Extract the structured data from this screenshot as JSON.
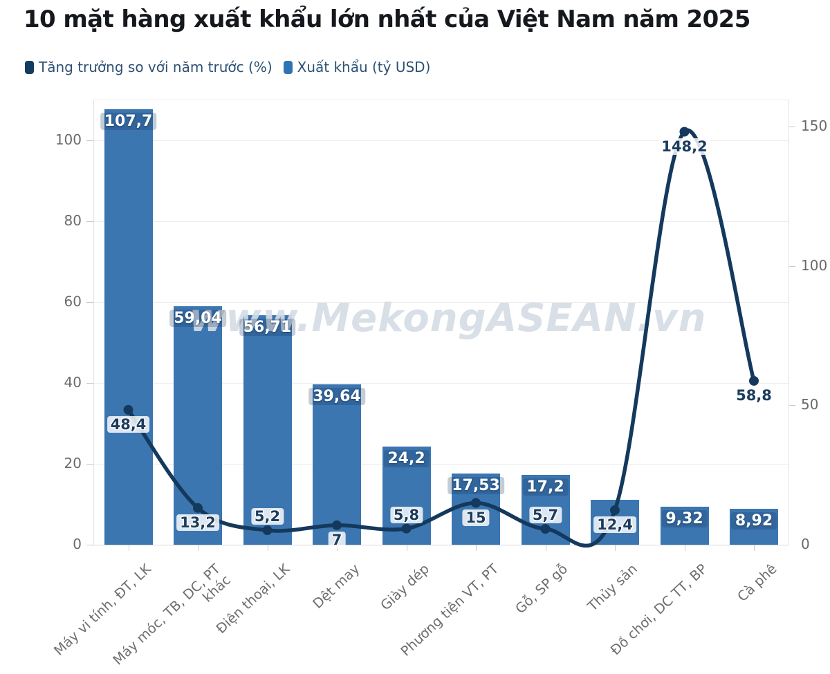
{
  "title": "10 mặt hàng xuất khẩu lớn nhất của Việt Nam năm 2025",
  "legend": [
    {
      "label": "Tăng trưởng so với năm trước (%)",
      "color": "#123c60"
    },
    {
      "label": "Xuất khẩu (tỷ USD)",
      "color": "#2e74b5"
    }
  ],
  "watermark": "www.MekongASEAN.vn",
  "chart_data": {
    "type": "combo-bar-line",
    "categories": [
      "Máy vi tính, ĐT, LK",
      "Máy móc, TB, DC, PT\nkhác",
      "Điện thoại, LK",
      "Dệt may",
      "Giày dép",
      "Phương tiện VT, PT",
      "Gỗ, SP gỗ",
      "Thủy sản",
      "Đồ chơi, DC TT, BP",
      "Cà phê"
    ],
    "series": [
      {
        "name": "Xuất khẩu (tỷ USD)",
        "type": "bar",
        "axis": "left",
        "color": "#3b76b1",
        "values": [
          107.7,
          59.04,
          56.71,
          39.64,
          24.2,
          17.53,
          17.2,
          11.1,
          9.32,
          8.92
        ],
        "labels": [
          "107,7",
          "59,04",
          "56,71",
          "39,64",
          "24,2",
          "17,53",
          "17,2",
          "",
          "9,32",
          "8,92"
        ]
      },
      {
        "name": "Tăng trưởng so với năm trước (%)",
        "type": "line",
        "axis": "right",
        "color": "#14395c",
        "values": [
          48.4,
          13.2,
          5.2,
          7,
          5.8,
          15,
          5.7,
          12.4,
          148.2,
          58.8
        ],
        "labels": [
          "48,4",
          "13,2",
          "5,2",
          "7",
          "5,8",
          "15",
          "5,7",
          "12,4",
          "148,2",
          "58,8"
        ],
        "label_placement": [
          "below",
          "below",
          "above",
          "below",
          "above",
          "below",
          "above",
          "below",
          "below",
          "below"
        ]
      }
    ],
    "left_axis": {
      "ticks": [
        0,
        20,
        40,
        60,
        80,
        100
      ],
      "range": [
        0,
        110
      ]
    },
    "right_axis": {
      "ticks": [
        0,
        50,
        100,
        150
      ],
      "range": [
        0,
        160
      ]
    },
    "grid": "horizontal",
    "legend_position": "top-left",
    "x_label_rotation_deg": -43
  }
}
